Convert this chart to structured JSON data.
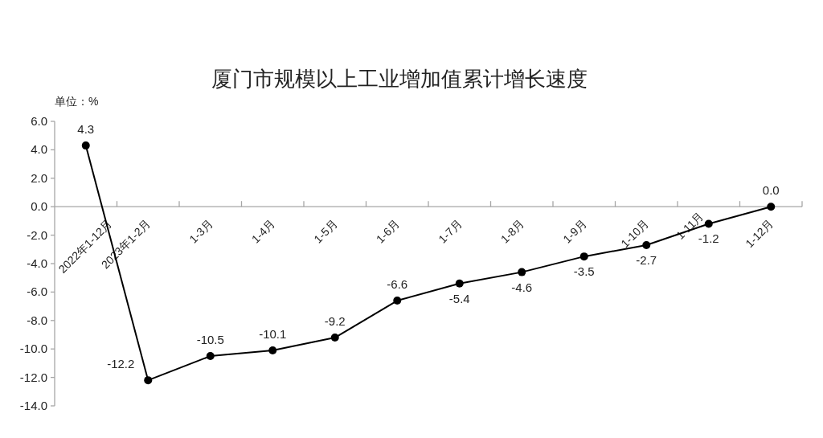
{
  "chart_data": {
    "type": "line",
    "title": "厦门市规模以上工业增加值累计增长速度",
    "ylabel": "单位：%",
    "categories": [
      "2022年1-12月",
      "2023年1-2月",
      "1-3月",
      "1-4月",
      "1-5月",
      "1-6月",
      "1-7月",
      "1-8月",
      "1-9月",
      "1-10月",
      "1-11月",
      "1-12月"
    ],
    "series": [
      {
        "color": "#000000",
        "values": [
          4.3,
          -12.2,
          -10.5,
          -10.1,
          -9.2,
          -6.6,
          -5.4,
          -4.6,
          -3.5,
          -2.7,
          -1.2,
          0.0
        ],
        "value_labels": [
          "4.3",
          "-12.2",
          "-10.5",
          "-10.1",
          "-9.2",
          "-6.6",
          "-5.4",
          "-4.6",
          "-3.5",
          "-2.7",
          "-1.2",
          "0.0"
        ]
      }
    ],
    "ylim": [
      -14,
      6
    ],
    "yticks": [
      {
        "value": 6,
        "label": "6.0"
      },
      {
        "value": 4,
        "label": "4.0"
      },
      {
        "value": 2,
        "label": "2.0"
      },
      {
        "value": 0,
        "label": "0.0"
      },
      {
        "value": -2,
        "label": "-2.0"
      },
      {
        "value": -4,
        "label": "-4.0"
      },
      {
        "value": -6,
        "label": "-6.0"
      },
      {
        "value": -8,
        "label": "-8.0"
      },
      {
        "value": -10,
        "label": "-10.0"
      },
      {
        "value": -12,
        "label": "-12.0"
      },
      {
        "value": -14,
        "label": "-14.0"
      }
    ],
    "marker": "circle",
    "line_style": "solid"
  }
}
